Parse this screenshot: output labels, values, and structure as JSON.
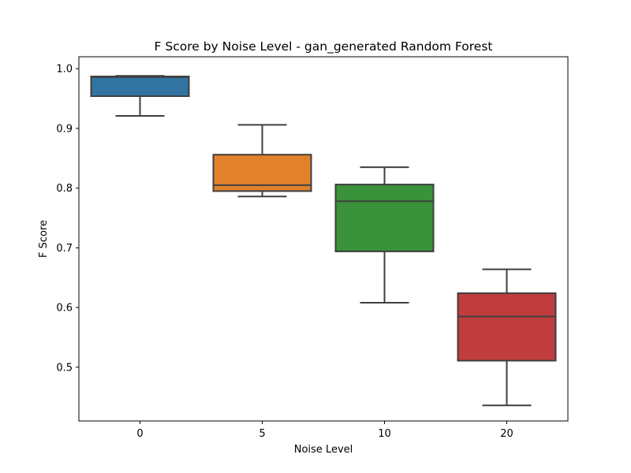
{
  "chart_data": {
    "type": "box",
    "title": "F Score by Noise Level - gan_generated Random Forest",
    "xlabel": "Noise Level",
    "ylabel": "F Score",
    "categories": [
      "0",
      "5",
      "10",
      "20"
    ],
    "ylim": [
      0.41,
      1.02
    ],
    "yticks": [
      0.5,
      0.6,
      0.7,
      0.8,
      0.9,
      1.0
    ],
    "ytick_labels": [
      "0.5",
      "0.6",
      "0.7",
      "0.8",
      "0.9",
      "1.0"
    ],
    "grid": false,
    "boxes": [
      {
        "category": "0",
        "whisker_low": 0.921,
        "q1": 0.954,
        "median": 0.986,
        "q3": 0.987,
        "whisker_high": 0.988,
        "color": "#3274a1"
      },
      {
        "category": "5",
        "whisker_low": 0.786,
        "q1": 0.795,
        "median": 0.805,
        "q3": 0.856,
        "whisker_high": 0.906,
        "color": "#e1812c"
      },
      {
        "category": "10",
        "whisker_low": 0.608,
        "q1": 0.694,
        "median": 0.778,
        "q3": 0.806,
        "whisker_high": 0.835,
        "color": "#3a923a"
      },
      {
        "category": "20",
        "whisker_low": 0.436,
        "q1": 0.511,
        "median": 0.585,
        "q3": 0.624,
        "whisker_high": 0.664,
        "color": "#c03d3e"
      }
    ]
  }
}
